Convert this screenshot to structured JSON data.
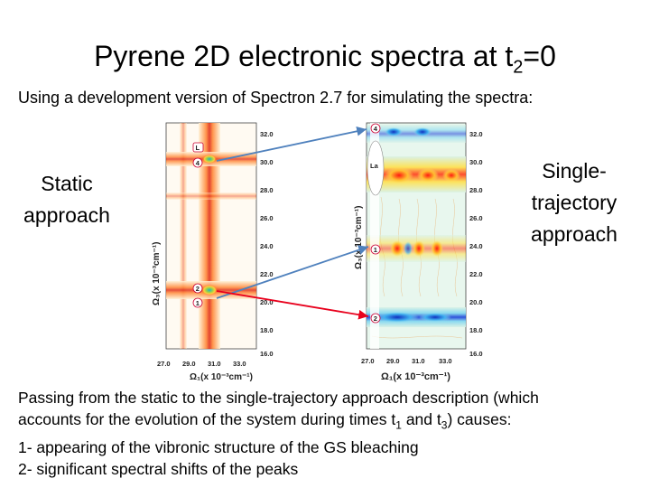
{
  "slide": {
    "title_main": "Pyrene 2D electronic spectra at t",
    "title_sub": "2",
    "title_tail": "=0",
    "subtitle": "Using a development version of Spectron 2.7 for simulating the spectra:",
    "left_label_line1": "Static",
    "left_label_line2": "approach",
    "right_label_line1": "Single-",
    "right_label_line2": "trajectory",
    "right_label_line3": "approach",
    "para": {
      "l1": "Passing from the static to the single-trajectory approach description (which",
      "l2a": "accounts for the evolution of the system during times t",
      "l2sub1": "1",
      "l2b": " and t",
      "l2sub2": "3",
      "l2c": ") causes:",
      "l3": "1- appearing of the vibronic structure of the GS bleaching",
      "l4": "2- significant spectral shifts of the peaks"
    }
  },
  "static_plot": {
    "y_ticks": [
      "32.0",
      "30.0",
      "28.0",
      "26.0",
      "24.0",
      "22.0",
      "20.0",
      "18.0",
      "16.0"
    ],
    "x_ticks": [
      "27.0",
      "29.0",
      "31.0",
      "33.0"
    ],
    "y_axis_label": "Ω₃(x 10⁻³cm⁻¹)",
    "x_axis_label": "Ω₁(x 10⁻³cm⁻¹)",
    "markers": [
      "L",
      "4",
      "2",
      "1"
    ]
  },
  "trajectory_plot": {
    "y_ticks": [
      "32.0",
      "30.0",
      "28.0",
      "26.0",
      "24.0",
      "22.0",
      "20.0",
      "18.0",
      "16.0"
    ],
    "x_ticks": [
      "27.0",
      "29.0",
      "31.0",
      "33.0"
    ],
    "y_axis_label": "Ω₃(x 10⁻³cm⁻¹)",
    "x_axis_label": "Ω₁(x 10⁻³cm⁻¹)",
    "markers": [
      "4",
      "La",
      "1",
      "2"
    ]
  },
  "colors": {
    "blue_arrow": "#4f81bd",
    "red_arrow": "#e8001c"
  }
}
